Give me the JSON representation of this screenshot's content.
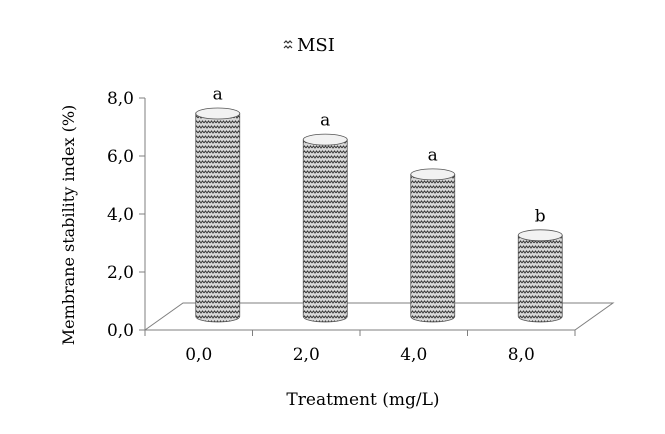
{
  "chart_data": {
    "type": "bar",
    "style": "3d-cylinder",
    "title": "MSI",
    "legend": {
      "marker": "zigzag-pattern-icon",
      "label": "MSI",
      "placement": "top-center"
    },
    "xlabel": "Treatment (mg/L)",
    "ylabel": "Membrane stability index (%)",
    "categories": [
      "0,0",
      "2,0",
      "4,0",
      "8,0"
    ],
    "values": [
      7.0,
      6.1,
      4.9,
      2.8
    ],
    "significance_letters": [
      "a",
      "a",
      "a",
      "b"
    ],
    "yticks": [
      "0,0",
      "2,0",
      "4,0",
      "6,0",
      "8,0"
    ],
    "ytick_values": [
      0,
      2,
      4,
      6,
      8
    ],
    "ylim": [
      0,
      8
    ],
    "grid": false,
    "colors": {
      "bar_fill": "#d8d8d8",
      "bar_pattern": "#3a3a3a",
      "bar_top": "#f2f2f2",
      "axis": "#7f7f7f"
    }
  }
}
